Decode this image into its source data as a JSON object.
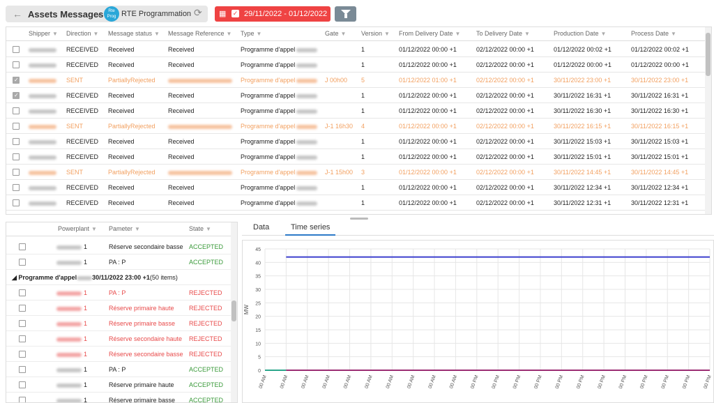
{
  "header": {
    "title": "Assets Messages",
    "separator": "-",
    "avatar_text": "Rte Prog",
    "app_name": "RTE Programmation",
    "date_range": "29/11/2022 - 01/12/2022"
  },
  "grid": {
    "columns": [
      "Shipper",
      "Direction",
      "Message status",
      "Message Reference",
      "Type",
      "Gate",
      "Version",
      "From Delivery Date",
      "To Delivery Date",
      "Production Date",
      "Process Date"
    ],
    "rows": [
      {
        "checked": false,
        "orange": false,
        "direction": "RECEIVED",
        "status": "Received",
        "reference": "Received",
        "type": "Programme d'appel",
        "gate": "",
        "version": "1",
        "from": "01/12/2022 00:00 +1",
        "to": "02/12/2022 00:00 +1",
        "production": "01/12/2022 00:02 +1",
        "process": "01/12/2022 00:02 +1"
      },
      {
        "checked": false,
        "orange": false,
        "direction": "RECEIVED",
        "status": "Received",
        "reference": "Received",
        "type": "Programme d'appel",
        "gate": "",
        "version": "1",
        "from": "01/12/2022 00:00 +1",
        "to": "02/12/2022 00:00 +1",
        "production": "01/12/2022 00:00 +1",
        "process": "01/12/2022 00:00 +1"
      },
      {
        "checked": true,
        "orange": true,
        "direction": "SENT",
        "status": "PartiallyRejected",
        "reference": "",
        "type": "Programme d'appel",
        "gate": "J 00h00",
        "version": "5",
        "from": "01/12/2022 01:00 +1",
        "to": "02/12/2022 00:00 +1",
        "production": "30/11/2022 23:00 +1",
        "process": "30/11/2022 23:00 +1"
      },
      {
        "checked": true,
        "orange": false,
        "direction": "RECEIVED",
        "status": "Received",
        "reference": "Received",
        "type": "Programme d'appel",
        "gate": "",
        "version": "1",
        "from": "01/12/2022 00:00 +1",
        "to": "02/12/2022 00:00 +1",
        "production": "30/11/2022 16:31 +1",
        "process": "30/11/2022 16:31 +1"
      },
      {
        "checked": false,
        "orange": false,
        "direction": "RECEIVED",
        "status": "Received",
        "reference": "Received",
        "type": "Programme d'appel",
        "gate": "",
        "version": "1",
        "from": "01/12/2022 00:00 +1",
        "to": "02/12/2022 00:00 +1",
        "production": "30/11/2022 16:30 +1",
        "process": "30/11/2022 16:30 +1"
      },
      {
        "checked": false,
        "orange": true,
        "direction": "SENT",
        "status": "PartiallyRejected",
        "reference": "",
        "type": "Programme d'appel",
        "gate": "J-1 16h30",
        "version": "4",
        "from": "01/12/2022 00:00 +1",
        "to": "02/12/2022 00:00 +1",
        "production": "30/11/2022 16:15 +1",
        "process": "30/11/2022 16:15 +1"
      },
      {
        "checked": false,
        "orange": false,
        "direction": "RECEIVED",
        "status": "Received",
        "reference": "Received",
        "type": "Programme d'appel",
        "gate": "",
        "version": "1",
        "from": "01/12/2022 00:00 +1",
        "to": "02/12/2022 00:00 +1",
        "production": "30/11/2022 15:03 +1",
        "process": "30/11/2022 15:03 +1"
      },
      {
        "checked": false,
        "orange": false,
        "direction": "RECEIVED",
        "status": "Received",
        "reference": "Received",
        "type": "Programme d'appel",
        "gate": "",
        "version": "1",
        "from": "01/12/2022 00:00 +1",
        "to": "02/12/2022 00:00 +1",
        "production": "30/11/2022 15:01 +1",
        "process": "30/11/2022 15:01 +1"
      },
      {
        "checked": false,
        "orange": true,
        "direction": "SENT",
        "status": "PartiallyRejected",
        "reference": "",
        "type": "Programme d'appel",
        "gate": "J-1 15h00",
        "version": "3",
        "from": "01/12/2022 00:00 +1",
        "to": "02/12/2022 00:00 +1",
        "production": "30/11/2022 14:45 +1",
        "process": "30/11/2022 14:45 +1"
      },
      {
        "checked": false,
        "orange": false,
        "direction": "RECEIVED",
        "status": "Received",
        "reference": "Received",
        "type": "Programme d'appel",
        "gate": "",
        "version": "1",
        "from": "01/12/2022 00:00 +1",
        "to": "02/12/2022 00:00 +1",
        "production": "30/11/2022 12:34 +1",
        "process": "30/11/2022 12:34 +1"
      },
      {
        "checked": false,
        "orange": false,
        "direction": "RECEIVED",
        "status": "Received",
        "reference": "Received",
        "type": "Programme d'appel",
        "gate": "",
        "version": "1",
        "from": "01/12/2022 00:00 +1",
        "to": "02/12/2022 00:00 +1",
        "production": "30/11/2022 12:31 +1",
        "process": "30/11/2022 12:31 +1"
      }
    ]
  },
  "detail": {
    "columns": [
      "Powerplant",
      "Pameter",
      "State"
    ],
    "rows": [
      {
        "kind": "row",
        "red": false,
        "suffix": "1",
        "param": "Réserve secondaire basse",
        "state": "ACCEPTED"
      },
      {
        "kind": "row",
        "red": false,
        "suffix": "1",
        "param": "PA : P",
        "state": "ACCEPTED"
      },
      {
        "kind": "group",
        "prefix": "Programme d'appel",
        "date": "30/11/2022 23:00 +1",
        "count": "(50 items)"
      },
      {
        "kind": "row",
        "red": true,
        "suffix": "1",
        "param": "PA : P",
        "state": "REJECTED"
      },
      {
        "kind": "row",
        "red": true,
        "suffix": "1",
        "param": "Réserve primaire haute",
        "state": "REJECTED"
      },
      {
        "kind": "row",
        "red": true,
        "suffix": "1",
        "param": "Réserve primaire basse",
        "state": "REJECTED"
      },
      {
        "kind": "row",
        "red": true,
        "suffix": "1",
        "param": "Réserve secondaire haute",
        "state": "REJECTED"
      },
      {
        "kind": "row",
        "red": true,
        "suffix": "1",
        "param": "Réserve secondaire basse",
        "state": "REJECTED"
      },
      {
        "kind": "row",
        "red": false,
        "suffix": "1",
        "param": "PA : P",
        "state": "ACCEPTED"
      },
      {
        "kind": "row",
        "red": false,
        "suffix": "1",
        "param": "Réserve primaire haute",
        "state": "ACCEPTED"
      },
      {
        "kind": "row",
        "red": false,
        "suffix": "1",
        "param": "Réserve primaire basse",
        "state": "ACCEPTED"
      }
    ]
  },
  "tabs": [
    {
      "label": "Data",
      "active": false
    },
    {
      "label": "Time series",
      "active": true
    }
  ],
  "colors": {
    "accent_red": "#ef4343",
    "sent_orange": "#f2a060",
    "rejected_red": "#e84a4a",
    "accepted_green": "#3a9a3a",
    "tab_blue": "#2c79c8",
    "series_blue": "#3b3fce",
    "series_purple": "#9b2d73",
    "series_green": "#2aa58a"
  },
  "chart_data": {
    "type": "line",
    "title": "",
    "xlabel": "",
    "ylabel": "MW",
    "ylim": [
      0,
      45
    ],
    "yticks": [
      0,
      5,
      10,
      15,
      20,
      25,
      30,
      35,
      40,
      45
    ],
    "x": [
      "00 AM",
      "00 AM",
      "00 AM",
      "00 AM",
      "00 AM",
      "00 AM",
      "00 AM",
      "00 AM",
      "00 AM",
      "00 AM",
      "00 PM",
      "00 PM",
      "00 PM",
      "00 PM",
      "00 PM",
      "00 PM",
      "00 PM",
      "00 PM",
      "00 PM",
      "00 PM",
      "00 PM",
      "00 PM"
    ],
    "grid": true,
    "series": [
      {
        "color": "#3b3fce",
        "values": [
          null,
          42,
          42,
          42,
          42,
          42,
          42,
          42,
          42,
          42,
          42,
          42,
          42,
          42,
          42,
          42,
          42,
          42,
          42,
          42,
          42,
          42
        ]
      },
      {
        "color": "#2aa58a",
        "values": [
          0,
          0,
          null,
          null,
          null,
          null,
          null,
          null,
          null,
          null,
          null,
          null,
          null,
          null,
          null,
          null,
          null,
          null,
          null,
          null,
          null,
          null
        ]
      },
      {
        "color": "#9b2d73",
        "values": [
          null,
          0,
          0,
          0,
          0,
          0,
          0,
          0,
          0,
          0,
          0,
          0,
          0,
          0,
          0,
          0,
          0,
          0,
          0,
          0,
          0,
          0
        ]
      }
    ]
  }
}
